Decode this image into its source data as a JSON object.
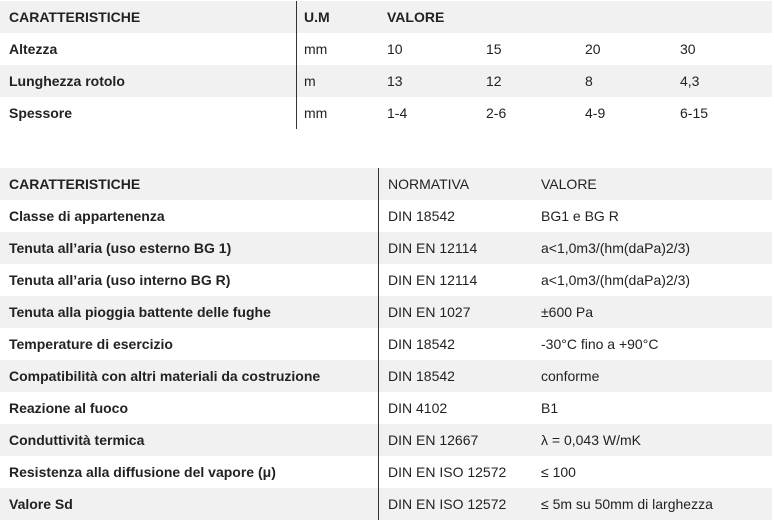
{
  "table1": {
    "headers": {
      "name": "CARATTERISTICHE",
      "unit": "U.M",
      "value": "VALORE"
    },
    "rows": [
      {
        "name": "Altezza",
        "unit": "mm",
        "values": [
          "10",
          "15",
          "20",
          "30"
        ]
      },
      {
        "name": "Lunghezza rotolo",
        "unit": "m",
        "values": [
          "13",
          "12",
          "8",
          "4,3"
        ]
      },
      {
        "name": "Spessore",
        "unit": "mm",
        "values": [
          "1-4",
          "2-6",
          "4-9",
          "6-15"
        ]
      }
    ]
  },
  "table2": {
    "headers": {
      "name": "CARATTERISTICHE",
      "norm": "NORMATIVA",
      "value": "VALORE"
    },
    "rows": [
      {
        "name": "Classe di appartenenza",
        "norm": "DIN 18542",
        "value": "BG1 e BG R"
      },
      {
        "name": "Tenuta all’aria (uso esterno BG 1)",
        "norm": "DIN EN 12114",
        "value": "a<1,0m3/(hm(daPa)2/3)"
      },
      {
        "name": "Tenuta all’aria (uso interno BG R)",
        "norm": "DIN EN 12114",
        "value": "a<1,0m3/(hm(daPa)2/3)"
      },
      {
        "name": "Tenuta alla pioggia battente delle fughe",
        "norm": "DIN EN 1027",
        "value": "±600 Pa"
      },
      {
        "name": "Temperature di esercizio",
        "norm": "DIN 18542",
        "value": "-30°C fino a +90°C"
      },
      {
        "name": "Compatibilità con altri materiali da costruzione",
        "norm": "DIN 18542",
        "value": "conforme"
      },
      {
        "name": "Reazione al fuoco",
        "norm": "DIN 4102",
        "value": "B1"
      },
      {
        "name": "Conduttività termica",
        "norm": "DIN EN 12667",
        "value": "λ = 0,043 W/mK"
      },
      {
        "name": "Resistenza alla diffusione del vapore (μ)",
        "norm": "DIN EN ISO 12572",
        "value": "≤ 100"
      },
      {
        "name": "Valore Sd",
        "norm": "DIN EN ISO 12572",
        "value": "≤ 5m su 50mm di larghezza"
      }
    ]
  }
}
